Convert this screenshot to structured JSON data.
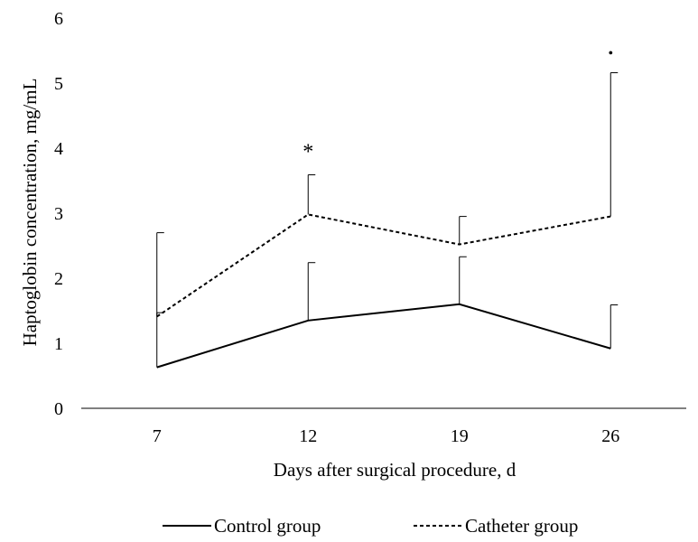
{
  "chart_data": {
    "type": "line",
    "title": "",
    "xlabel": "Days after surgical procedure, d",
    "ylabel": "Haptoglobin concentration, mg/mL",
    "categories": [
      "7",
      "12",
      "19",
      "26"
    ],
    "ylim": [
      0,
      6
    ],
    "yticks": [
      "0",
      "1",
      "2",
      "3",
      "4",
      "5",
      "6"
    ],
    "grid": false,
    "legend_position": "bottom",
    "series": [
      {
        "name": "Control group",
        "style": "solid",
        "color": "#000000",
        "values": [
          0.63,
          1.35,
          1.6,
          0.92
        ],
        "error_upper": [
          1.47,
          2.24,
          2.33,
          1.59
        ]
      },
      {
        "name": "Catheter group",
        "style": "dashed",
        "color": "#000000",
        "values": [
          1.41,
          2.98,
          2.52,
          2.95
        ],
        "error_upper": [
          2.7,
          3.59,
          2.95,
          5.16
        ]
      }
    ],
    "annotations": [
      {
        "category": "12",
        "y": 3.95,
        "text": "*"
      },
      {
        "category": "26",
        "y": 5.5,
        "text": "•"
      }
    ]
  }
}
